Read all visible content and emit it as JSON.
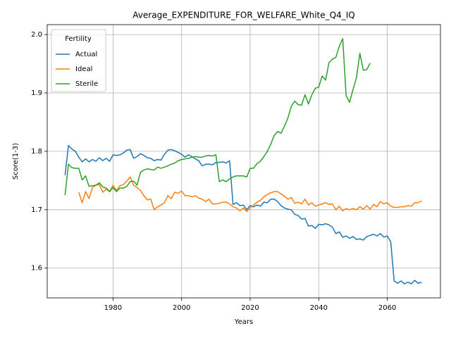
{
  "chart_data": {
    "type": "line",
    "title": "Average_EXPENDITURE_FOR_WELFARE_White_Q4_IQ",
    "xlabel": "Years",
    "ylabel": "Score(1-3)",
    "legend_title": "Fertility",
    "legend_loc": "upper left",
    "grid": true,
    "xlim": [
      1960.8,
      2075.5
    ],
    "ylim": [
      1.549,
      2.017
    ],
    "xticks": [
      1980,
      2000,
      2020,
      2040,
      2060
    ],
    "yticks": [
      1.6,
      1.7,
      1.8,
      1.9,
      {
        "value": 2,
        "label": "2.0"
      }
    ],
    "x": [
      1966,
      1967,
      1968,
      1969,
      1970,
      1971,
      1972,
      1973,
      1974,
      1975,
      1976,
      1977,
      1978,
      1979,
      1980,
      1981,
      1982,
      1983,
      1984,
      1985,
      1986,
      1987,
      1988,
      1989,
      1990,
      1991,
      1992,
      1993,
      1994,
      1995,
      1996,
      1997,
      1998,
      1999,
      2000,
      2001,
      2002,
      2003,
      2004,
      2005,
      2006,
      2007,
      2008,
      2009,
      2010,
      2011,
      2012,
      2013,
      2014,
      2015,
      2016,
      2017,
      2018,
      2019,
      2020,
      2021,
      2022,
      2023,
      2024,
      2025,
      2026,
      2027,
      2028,
      2029,
      2030,
      2031,
      2032,
      2033,
      2034,
      2035,
      2036,
      2037,
      2038,
      2039,
      2040,
      2041,
      2042,
      2043,
      2044,
      2045,
      2046,
      2047,
      2048,
      2049,
      2050,
      2051,
      2052,
      2053,
      2054,
      2055,
      2056,
      2057,
      2058,
      2059,
      2060,
      2061,
      2062,
      2063,
      2064,
      2065,
      2066,
      2067,
      2068,
      2069,
      2070
    ],
    "series": [
      {
        "name": "Actual",
        "color": "#1f77b4",
        "values": [
          1.759,
          1.81,
          1.804,
          1.8,
          1.79,
          1.782,
          1.787,
          1.782,
          1.786,
          1.783,
          1.789,
          1.784,
          1.788,
          1.783,
          1.794,
          1.793,
          1.794,
          1.797,
          1.802,
          1.803,
          1.788,
          1.791,
          1.796,
          1.793,
          1.789,
          1.788,
          1.784,
          1.786,
          1.785,
          1.795,
          1.802,
          1.803,
          1.801,
          1.798,
          1.795,
          1.79,
          1.794,
          1.791,
          1.787,
          1.784,
          1.775,
          1.778,
          1.778,
          1.777,
          1.781,
          1.781,
          1.782,
          1.78,
          1.784,
          1.709,
          1.712,
          1.707,
          1.708,
          1.7,
          1.707,
          1.705,
          1.708,
          1.706,
          1.713,
          1.712,
          1.718,
          1.718,
          1.714,
          1.707,
          1.703,
          1.701,
          1.7,
          1.692,
          1.69,
          1.684,
          1.685,
          1.672,
          1.673,
          1.668,
          1.675,
          1.674,
          1.676,
          1.674,
          1.67,
          1.659,
          1.662,
          1.653,
          1.655,
          1.651,
          1.654,
          1.649,
          1.65,
          1.648,
          1.654,
          1.656,
          1.658,
          1.655,
          1.659,
          1.653,
          1.655,
          1.645,
          1.578,
          1.574,
          1.578,
          1.573,
          1.576,
          1.573,
          1.579,
          1.574,
          1.576
        ]
      },
      {
        "name": "Ideal",
        "color": "#ff7f0e",
        "values": [
          null,
          null,
          null,
          null,
          1.73,
          1.712,
          1.731,
          1.719,
          1.738,
          1.742,
          1.743,
          1.73,
          1.735,
          1.731,
          1.742,
          1.733,
          1.741,
          1.743,
          1.749,
          1.756,
          1.742,
          1.738,
          1.733,
          1.724,
          1.717,
          1.718,
          1.7,
          1.705,
          1.708,
          1.712,
          1.724,
          1.719,
          1.73,
          1.728,
          1.732,
          1.724,
          1.724,
          1.722,
          1.724,
          1.72,
          1.718,
          1.714,
          1.718,
          1.71,
          1.71,
          1.711,
          1.713,
          1.713,
          1.71,
          1.705,
          1.703,
          1.698,
          1.703,
          1.697,
          1.703,
          1.708,
          1.713,
          1.716,
          1.722,
          1.726,
          1.729,
          1.731,
          1.731,
          1.727,
          1.723,
          1.718,
          1.721,
          1.711,
          1.713,
          1.71,
          1.718,
          1.708,
          1.712,
          1.706,
          1.708,
          1.71,
          1.712,
          1.709,
          1.71,
          1.7,
          1.706,
          1.698,
          1.702,
          1.7,
          1.702,
          1.7,
          1.705,
          1.701,
          1.707,
          1.701,
          1.709,
          1.705,
          1.714,
          1.71,
          1.712,
          1.706,
          1.704,
          1.704,
          1.705,
          1.705,
          1.707,
          1.706,
          1.712,
          1.712,
          1.715
        ]
      },
      {
        "name": "Sterile",
        "color": "#2ca02c",
        "values": [
          1.725,
          1.778,
          1.772,
          1.771,
          1.771,
          1.751,
          1.758,
          1.74,
          1.741,
          1.742,
          1.746,
          1.739,
          1.737,
          1.731,
          1.738,
          1.731,
          1.737,
          1.737,
          1.74,
          1.748,
          1.749,
          1.742,
          1.764,
          1.768,
          1.77,
          1.769,
          1.768,
          1.773,
          1.771,
          1.773,
          1.775,
          1.778,
          1.78,
          1.784,
          1.786,
          1.787,
          1.788,
          1.79,
          1.791,
          1.79,
          1.79,
          1.792,
          1.793,
          1.792,
          1.794,
          1.748,
          1.751,
          1.748,
          1.753,
          1.756,
          1.758,
          1.758,
          1.758,
          1.756,
          1.771,
          1.771,
          1.779,
          1.783,
          1.791,
          1.8,
          1.812,
          1.827,
          1.834,
          1.831,
          1.843,
          1.857,
          1.877,
          1.886,
          1.88,
          1.879,
          1.897,
          1.881,
          1.897,
          1.908,
          1.91,
          1.929,
          1.922,
          1.952,
          1.958,
          1.961,
          1.98,
          1.993,
          1.895,
          1.884,
          1.906,
          1.926,
          1.968,
          1.939,
          1.94,
          1.951,
          null,
          null,
          null,
          null,
          null,
          null,
          null,
          null,
          null,
          null,
          null,
          null,
          null,
          null,
          null
        ]
      }
    ]
  }
}
